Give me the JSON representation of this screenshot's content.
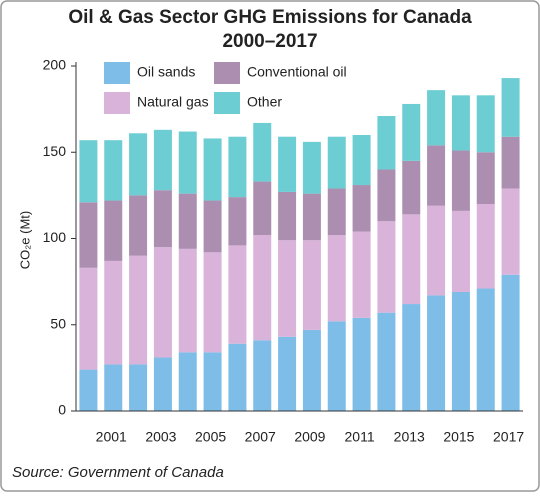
{
  "chart_data": {
    "type": "stacked-bar",
    "title": "Oil & Gas Sector GHG Emissions for Canada",
    "subtitle": "2000–2017",
    "y_label": "CO₂e (Mt)",
    "source": "Source: Government of Canada",
    "categories": [
      null,
      "2001",
      null,
      "2003",
      null,
      "2005",
      null,
      "2007",
      null,
      "2009",
      null,
      "2011",
      null,
      "2013",
      null,
      "2015",
      null,
      "2017"
    ],
    "series": [
      {
        "name": "Oil sands",
        "color": "#7dbde8",
        "values": [
          24,
          27,
          27,
          31,
          34,
          34,
          39,
          41,
          43,
          47,
          52,
          54,
          57,
          62,
          67,
          69,
          71,
          79
        ]
      },
      {
        "name": "Natural gas",
        "color": "#d9b3d9",
        "values": [
          59,
          60,
          63,
          64,
          60,
          58,
          57,
          61,
          56,
          52,
          50,
          50,
          53,
          52,
          52,
          47,
          49,
          50
        ]
      },
      {
        "name": "Conventional oil",
        "color": "#ac8fb0",
        "values": [
          38,
          35,
          35,
          33,
          32,
          30,
          28,
          31,
          28,
          27,
          27,
          27,
          30,
          31,
          35,
          35,
          30,
          30
        ]
      },
      {
        "name": "Other",
        "color": "#6ccdd3",
        "values": [
          36,
          35,
          36,
          35,
          36,
          36,
          35,
          34,
          32,
          30,
          30,
          29,
          31,
          33,
          32,
          32,
          33,
          34
        ]
      }
    ],
    "ylim": [
      0,
      200
    ],
    "yticks": [
      0,
      50,
      100,
      150,
      200
    ],
    "legend": "top-left"
  }
}
